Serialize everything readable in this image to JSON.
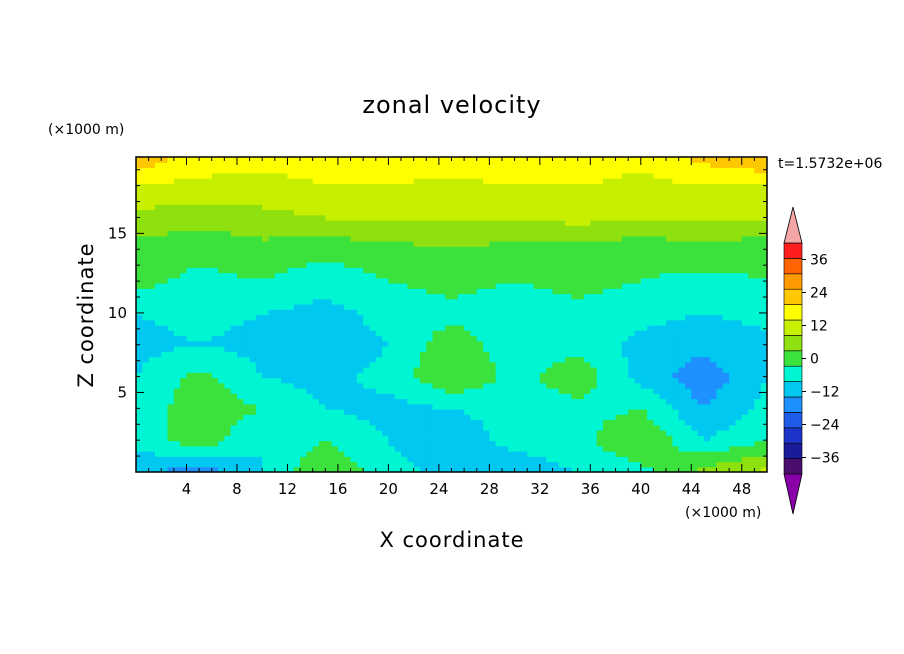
{
  "chart_data": {
    "type": "heatmap",
    "title": "zonal velocity",
    "xlabel": "X coordinate",
    "ylabel": "Z coordinate",
    "x_unit": "(×1000 m)",
    "y_unit": "(×1000 m)",
    "time_label": "t=1.5732e+06",
    "xlim": [
      0,
      50
    ],
    "ylim": [
      0,
      19.8
    ],
    "xticks": [
      4,
      8,
      12,
      16,
      20,
      24,
      28,
      32,
      36,
      40,
      44,
      48
    ],
    "yticks": [
      5,
      10,
      15
    ],
    "colorbar": {
      "levels": [
        -42,
        -36,
        -30,
        -24,
        -18,
        -12,
        -6,
        0,
        6,
        12,
        18,
        24,
        30,
        36,
        42
      ],
      "colors": [
        "#4b0d6e",
        "#1a1a9a",
        "#1c34c8",
        "#1f5ce8",
        "#1e90ff",
        "#00c8f0",
        "#00f5d2",
        "#3ce23c",
        "#8ee00e",
        "#c6f000",
        "#ffff00",
        "#ffc800",
        "#ff9a00",
        "#ff6400",
        "#ff1e1e"
      ],
      "under_color": "#8a00a8",
      "over_color": "#f4a6a6",
      "tick_labels": [
        "36",
        "24",
        "12",
        "0",
        "−12",
        "−24",
        "−36"
      ],
      "tick_values": [
        36,
        24,
        12,
        0,
        -12,
        -24,
        -36
      ]
    },
    "grid_x": [
      0,
      5,
      10,
      15,
      20,
      25,
      30,
      35,
      40,
      45,
      50
    ],
    "grid_z": [
      0,
      2,
      4,
      6,
      8,
      10,
      12,
      14,
      16,
      18,
      19.8
    ],
    "values": [
      [
        -10,
        -16,
        -6,
        6,
        -4,
        -8,
        -10,
        -6,
        -2,
        8,
        14
      ],
      [
        -4,
        4,
        -6,
        0,
        -6,
        -10,
        -4,
        -2,
        6,
        -6,
        0
      ],
      [
        -4,
        4,
        0,
        -6,
        -8,
        -6,
        -4,
        -2,
        0,
        -12,
        -4
      ],
      [
        -6,
        2,
        -6,
        -8,
        -4,
        6,
        -2,
        4,
        -8,
        -16,
        -6
      ],
      [
        -8,
        -6,
        -8,
        -10,
        -6,
        4,
        -4,
        -2,
        -8,
        -10,
        -8
      ],
      [
        -6,
        -4,
        -6,
        -8,
        -4,
        -2,
        -4,
        -2,
        -4,
        -6,
        -4
      ],
      [
        2,
        -2,
        0,
        -4,
        0,
        2,
        0,
        2,
        0,
        -2,
        0
      ],
      [
        4,
        2,
        4,
        2,
        4,
        6,
        4,
        4,
        2,
        4,
        2
      ],
      [
        10,
        8,
        10,
        12,
        12,
        12,
        12,
        14,
        12,
        12,
        12
      ],
      [
        18,
        16,
        16,
        18,
        18,
        16,
        18,
        18,
        16,
        18,
        18
      ],
      [
        28,
        22,
        20,
        20,
        22,
        22,
        24,
        22,
        20,
        26,
        30
      ]
    ]
  }
}
